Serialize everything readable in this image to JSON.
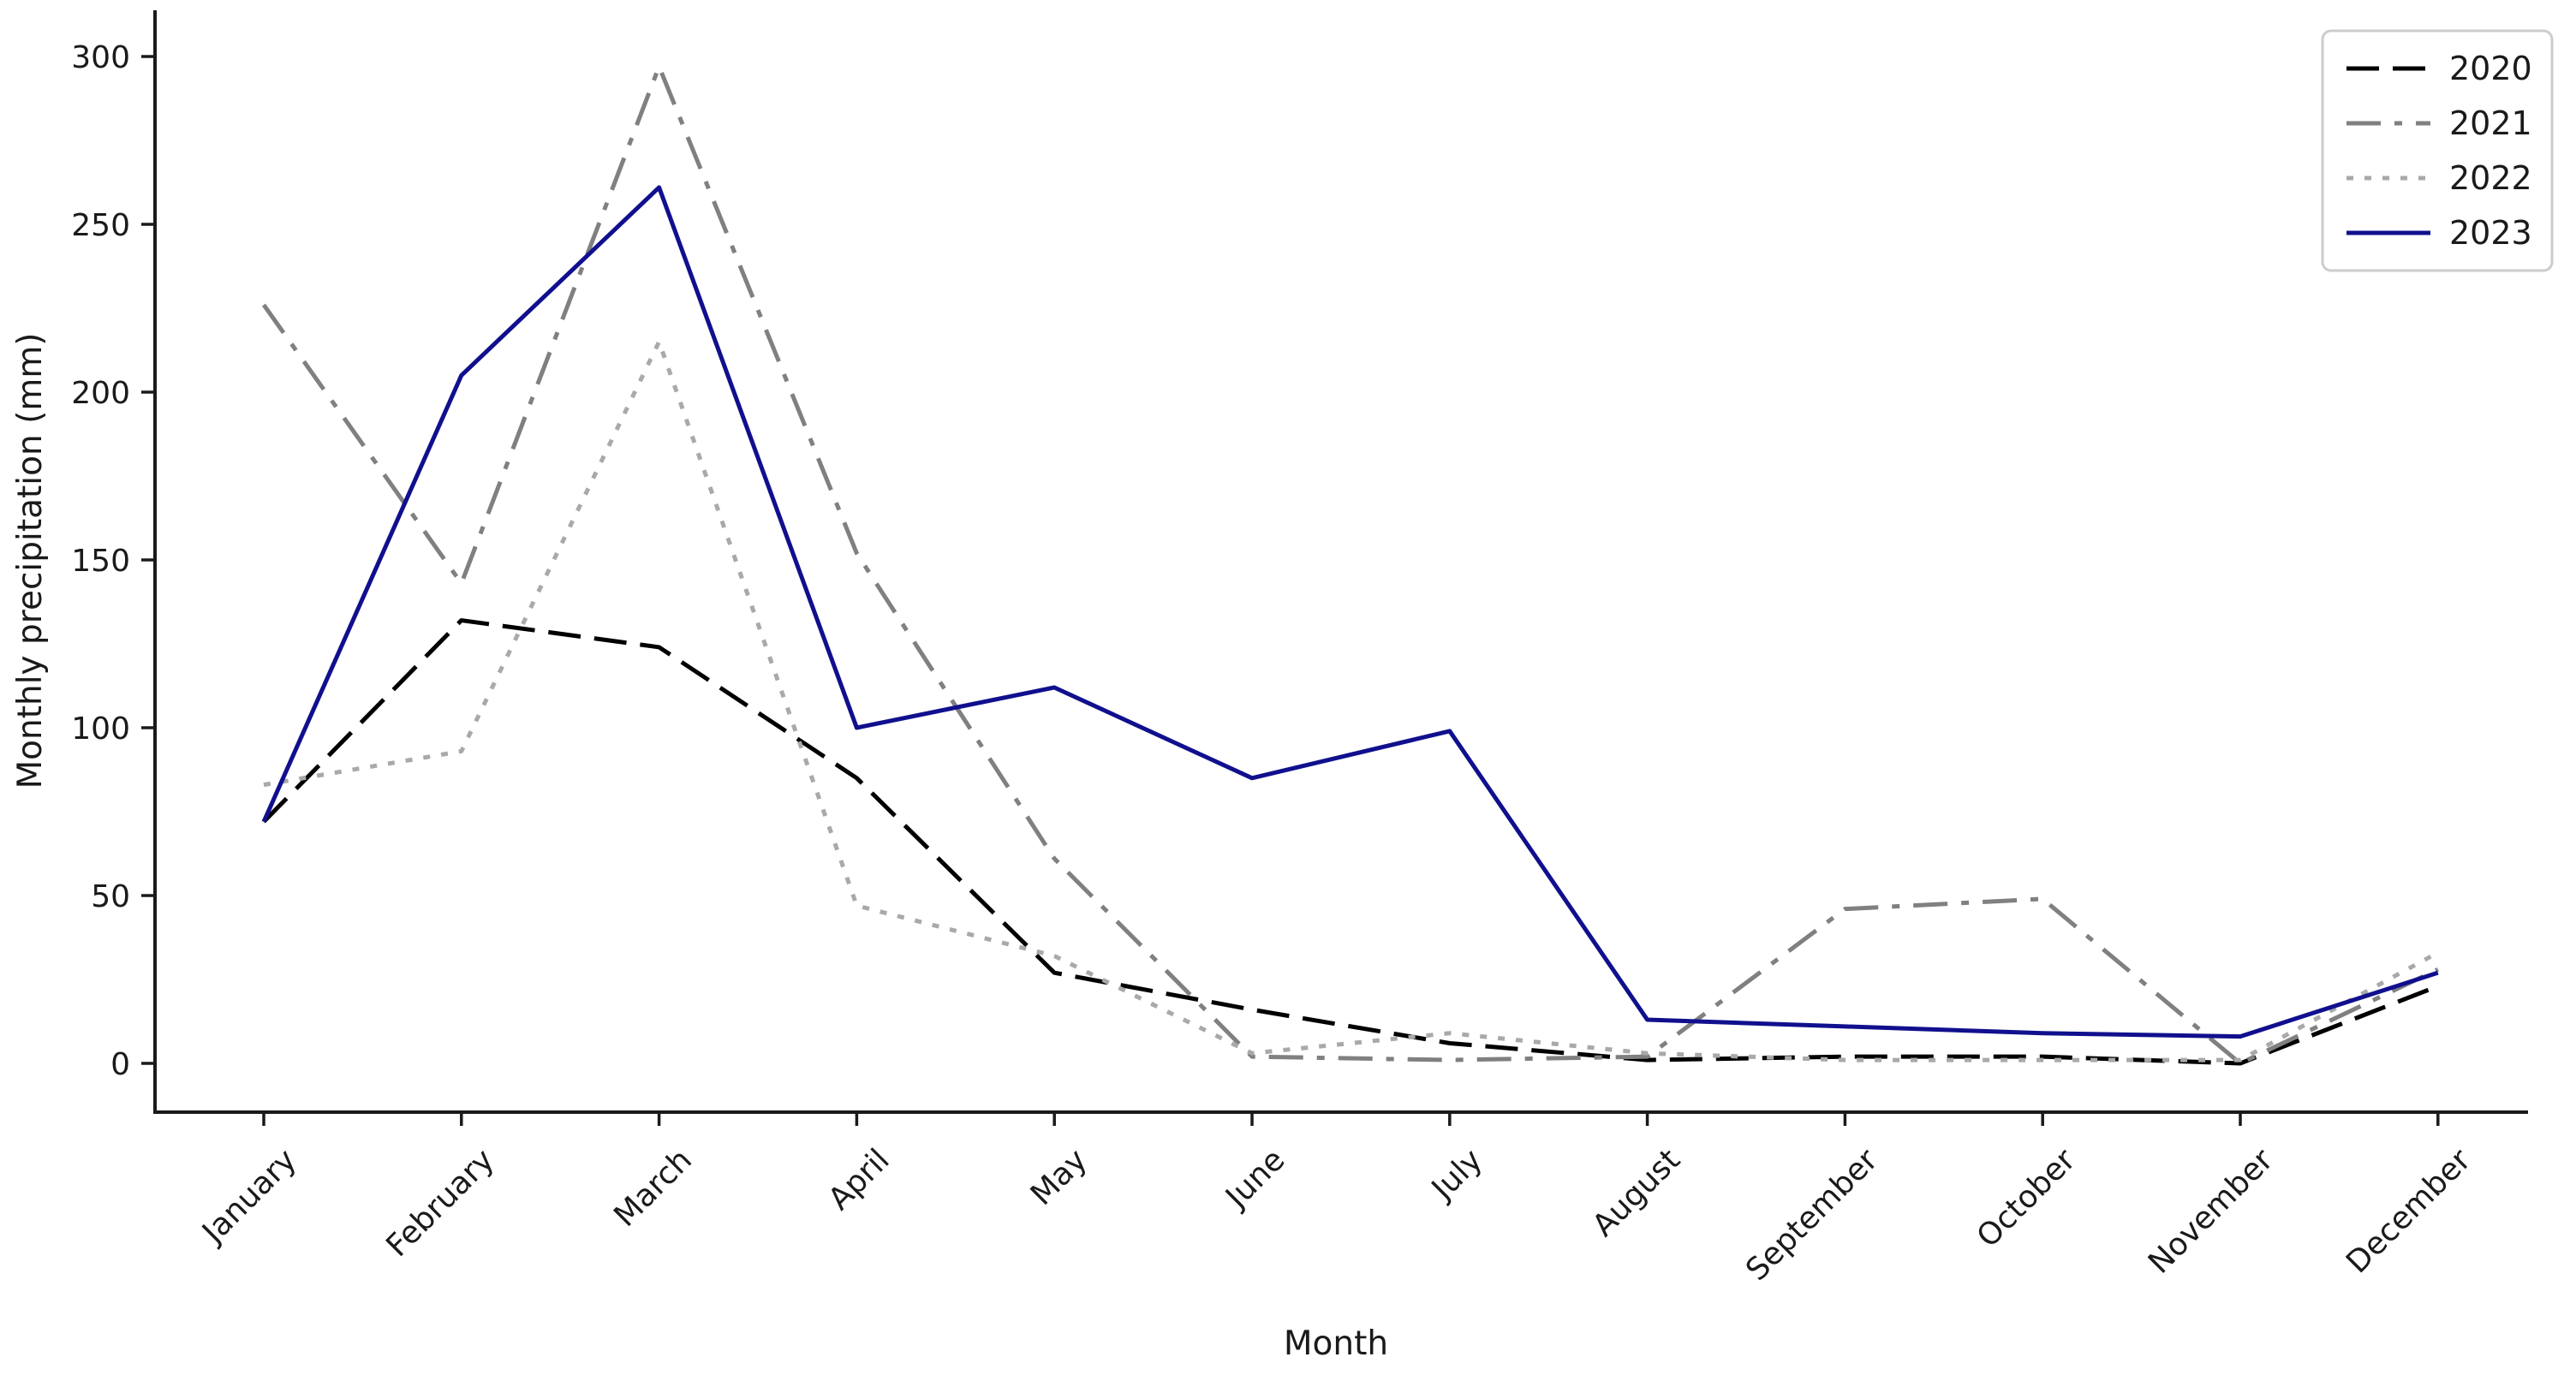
{
  "chart_data": {
    "type": "line",
    "title": "",
    "xlabel": "Month",
    "ylabel": "Monthly precipitation (mm)",
    "categories": [
      "January",
      "February",
      "March",
      "April",
      "May",
      "June",
      "July",
      "August",
      "September",
      "October",
      "November",
      "December"
    ],
    "yticks": [
      0,
      50,
      100,
      150,
      200,
      250,
      300
    ],
    "ylim": [
      0,
      300
    ],
    "grid": false,
    "legend_position": "upper right",
    "background_color": "#ffffff",
    "axis_color": "#1a1a1a",
    "series": [
      {
        "name": "2020",
        "color": "#000000",
        "linestyle": "dashed",
        "values": [
          72,
          132,
          124,
          85,
          27,
          16,
          6,
          1,
          2,
          2,
          0,
          23
        ]
      },
      {
        "name": "2021",
        "color": "#808080",
        "linestyle": "dashdot",
        "values": [
          226,
          143,
          297,
          152,
          61,
          2,
          1,
          2,
          46,
          49,
          0,
          28
        ]
      },
      {
        "name": "2022",
        "color": "#a9a9a9",
        "linestyle": "dotted",
        "values": [
          83,
          93,
          215,
          47,
          32,
          3,
          9,
          3,
          1,
          1,
          1,
          33
        ]
      },
      {
        "name": "2023",
        "color": "#10108e",
        "linestyle": "solid",
        "values": [
          72,
          205,
          261,
          100,
          112,
          85,
          99,
          13,
          11,
          9,
          8,
          27
        ]
      }
    ]
  }
}
